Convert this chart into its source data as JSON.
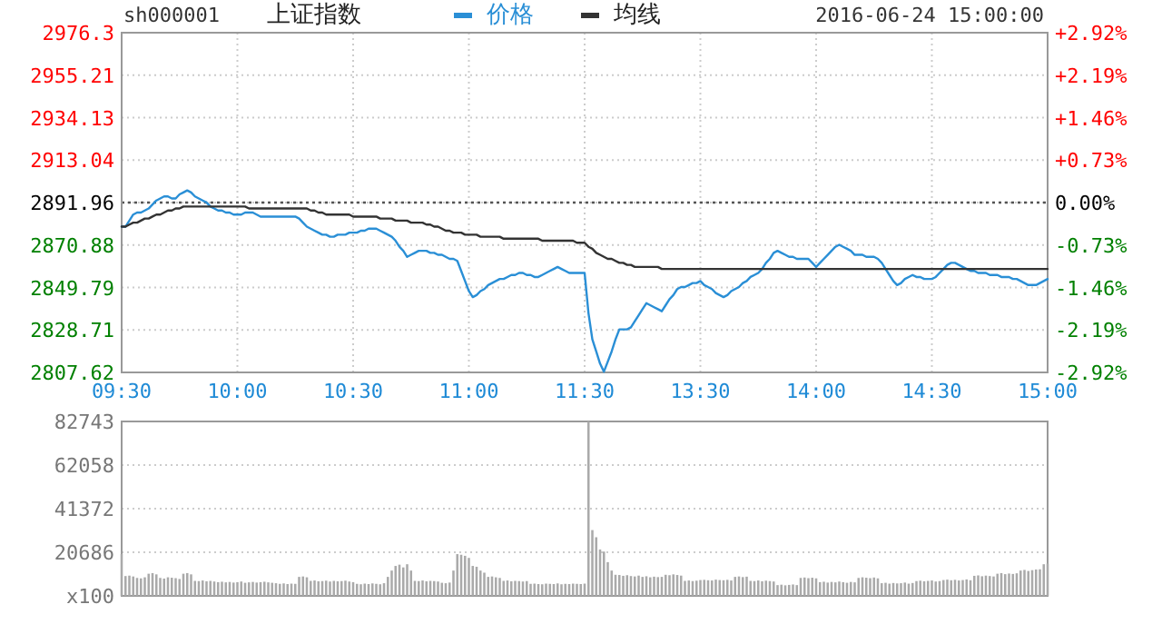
{
  "chart_data": [
    {
      "type": "line",
      "title": "上证指数",
      "subtitle": "sh000001",
      "annotations": [
        "2016-06-24 15:00:00"
      ],
      "legend": "top",
      "grid": true,
      "line_style": "solid",
      "categories": [
        "09:30",
        null,
        null,
        null,
        null,
        null,
        null,
        null,
        null,
        null,
        null,
        null,
        null,
        null,
        null,
        null,
        null,
        null,
        null,
        null,
        null,
        null,
        null,
        null,
        null,
        null,
        null,
        null,
        null,
        null,
        "10:00",
        null,
        null,
        null,
        null,
        null,
        null,
        null,
        null,
        null,
        null,
        null,
        null,
        null,
        null,
        null,
        null,
        null,
        null,
        null,
        null,
        null,
        null,
        null,
        null,
        null,
        null,
        null,
        null,
        null,
        "10:30",
        null,
        null,
        null,
        null,
        null,
        null,
        null,
        null,
        null,
        null,
        null,
        null,
        null,
        null,
        null,
        null,
        null,
        null,
        null,
        null,
        null,
        null,
        null,
        null,
        null,
        null,
        null,
        null,
        null,
        "11:00",
        null,
        null,
        null,
        null,
        null,
        null,
        null,
        null,
        null,
        null,
        null,
        null,
        null,
        null,
        null,
        null,
        null,
        null,
        null,
        null,
        null,
        null,
        null,
        null,
        null,
        null,
        null,
        null,
        null,
        "11:30",
        null,
        null,
        null,
        null,
        null,
        null,
        null,
        null,
        null,
        null,
        null,
        null,
        null,
        null,
        null,
        null,
        null,
        null,
        null,
        null,
        null,
        null,
        null,
        null,
        null,
        null,
        null,
        null,
        null,
        "13:30",
        null,
        null,
        null,
        null,
        null,
        null,
        null,
        null,
        null,
        null,
        null,
        null,
        null,
        null,
        null,
        null,
        null,
        null,
        null,
        null,
        null,
        null,
        null,
        null,
        null,
        null,
        null,
        null,
        null,
        "14:00",
        null,
        null,
        null,
        null,
        null,
        null,
        null,
        null,
        null,
        null,
        null,
        null,
        null,
        null,
        null,
        null,
        null,
        null,
        null,
        null,
        null,
        null,
        null,
        null,
        null,
        null,
        null,
        null,
        null,
        "14:30",
        null,
        null,
        null,
        null,
        null,
        null,
        null,
        null,
        null,
        null,
        null,
        null,
        null,
        null,
        null,
        null,
        null,
        null,
        null,
        null,
        null,
        null,
        null,
        null,
        null,
        null,
        null,
        null,
        null,
        "15:00"
      ],
      "ylim": [
        2807.62,
        2976.3
      ],
      "yticks": [
        2807.62,
        2828.71,
        2849.79,
        2870.88,
        2891.96,
        2913.04,
        2934.13,
        2955.21,
        2976.3
      ],
      "y2lim": [
        -2.92,
        2.92
      ],
      "y2ticks": [
        {
          "value": -2.92,
          "label": "-2.92%"
        },
        {
          "value": -2.19,
          "label": "-2.19%"
        },
        {
          "value": -1.46,
          "label": "-1.46%"
        },
        {
          "value": -0.73,
          "label": "-0.73%"
        },
        {
          "value": 0,
          "label": "0.00%"
        },
        {
          "value": 0.73,
          "label": "+0.73%"
        },
        {
          "value": 1.46,
          "label": "+1.46%"
        },
        {
          "value": 2.19,
          "label": "+2.19%"
        },
        {
          "value": 2.92,
          "label": "+2.92%"
        }
      ],
      "ref_lines": [
        {
          "axis": "y",
          "value": 2891.96,
          "color": "#555555",
          "line_style": "dotted"
        }
      ],
      "series": [
        {
          "name": "价格",
          "color": "#2a8fd6",
          "values": [
            2880,
            2880,
            2883,
            2886,
            2887,
            2887,
            2888,
            2889,
            2891,
            2893,
            2894,
            2895,
            2895,
            2894,
            2894,
            2896,
            2897,
            2898,
            2897,
            2895,
            2894,
            2893,
            2892,
            2890,
            2889,
            2888,
            2888,
            2887,
            2887,
            2886,
            2886,
            2886,
            2887,
            2887,
            2887,
            2886,
            2885,
            2885,
            2885,
            2885,
            2885,
            2885,
            2885,
            2885,
            2885,
            2885,
            2884,
            2882,
            2880,
            2879,
            2878,
            2877,
            2876,
            2876,
            2875,
            2875,
            2876,
            2876,
            2876,
            2877,
            2877,
            2877,
            2878,
            2878,
            2879,
            2879,
            2879,
            2878,
            2877,
            2876,
            2875,
            2873,
            2870,
            2868,
            2865,
            2866,
            2867,
            2868,
            2868,
            2868,
            2867,
            2867,
            2866,
            2866,
            2865,
            2864,
            2864,
            2863,
            2858,
            2853,
            2848,
            2845,
            2846,
            2848,
            2849,
            2851,
            2852,
            2853,
            2854,
            2854,
            2855,
            2856,
            2856,
            2857,
            2857,
            2856,
            2856,
            2855,
            2855,
            2856,
            2857,
            2858,
            2859,
            2860,
            2859,
            2858,
            2857,
            2857,
            2857,
            2857,
            2857,
            2837,
            2824,
            2818,
            2812,
            2808,
            2813,
            2818,
            2824,
            2829,
            2829,
            2829,
            2830,
            2833,
            2836,
            2839,
            2842,
            2841,
            2840,
            2839,
            2838,
            2841,
            2844,
            2846,
            2849,
            2850,
            2850,
            2851,
            2852,
            2852,
            2853,
            2851,
            2850,
            2849,
            2847,
            2846,
            2845,
            2846,
            2848,
            2849,
            2850,
            2852,
            2853,
            2855,
            2856,
            2857,
            2859,
            2862,
            2864,
            2867,
            2868,
            2867,
            2866,
            2865,
            2865,
            2864,
            2864,
            2864,
            2864,
            2862,
            2860,
            2862,
            2864,
            2866,
            2868,
            2870,
            2871,
            2870,
            2869,
            2868,
            2866,
            2866,
            2866,
            2865,
            2865,
            2865,
            2864,
            2862,
            2859,
            2856,
            2853,
            2851,
            2852,
            2854,
            2855,
            2856,
            2855,
            2855,
            2854,
            2854,
            2854,
            2855,
            2857,
            2859,
            2861,
            2862,
            2862,
            2861,
            2860,
            2859,
            2858,
            2858,
            2857,
            2857,
            2857,
            2856,
            2856,
            2856,
            2855,
            2855,
            2855,
            2854,
            2854,
            2853,
            2852,
            2851,
            2851,
            2851,
            2852,
            2853,
            2854
          ]
        },
        {
          "name": "均线",
          "color": "#333333",
          "values": [
            2880,
            2880,
            2881,
            2882,
            2882,
            2883,
            2884,
            2884,
            2885,
            2886,
            2886,
            2887,
            2888,
            2888,
            2889,
            2889,
            2890,
            2890,
            2890,
            2890,
            2890,
            2890,
            2890,
            2890,
            2890,
            2890,
            2890,
            2890,
            2890,
            2890,
            2890,
            2890,
            2890,
            2889,
            2889,
            2889,
            2889,
            2889,
            2889,
            2889,
            2889,
            2889,
            2889,
            2889,
            2889,
            2889,
            2889,
            2889,
            2889,
            2888,
            2888,
            2887,
            2887,
            2886,
            2886,
            2886,
            2886,
            2886,
            2886,
            2886,
            2885,
            2885,
            2885,
            2885,
            2885,
            2885,
            2885,
            2884,
            2884,
            2884,
            2884,
            2883,
            2883,
            2883,
            2883,
            2882,
            2882,
            2882,
            2882,
            2881,
            2881,
            2880,
            2880,
            2879,
            2878,
            2878,
            2877,
            2877,
            2877,
            2876,
            2876,
            2876,
            2876,
            2875,
            2875,
            2875,
            2875,
            2875,
            2875,
            2874,
            2874,
            2874,
            2874,
            2874,
            2874,
            2874,
            2874,
            2874,
            2874,
            2873,
            2873,
            2873,
            2873,
            2873,
            2873,
            2873,
            2873,
            2873,
            2872,
            2872,
            2872,
            2870,
            2869,
            2867,
            2866,
            2865,
            2864,
            2864,
            2863,
            2862,
            2862,
            2861,
            2861,
            2860,
            2860,
            2860,
            2860,
            2860,
            2860,
            2860,
            2859,
            2859,
            2859,
            2859,
            2859,
            2859,
            2859,
            2859,
            2859,
            2859,
            2859,
            2859,
            2859,
            2859,
            2859,
            2859,
            2859,
            2859,
            2859,
            2859,
            2859,
            2859,
            2859,
            2859,
            2859,
            2859,
            2859,
            2859,
            2859,
            2859,
            2859,
            2859,
            2859,
            2859,
            2859,
            2859,
            2859,
            2859,
            2859,
            2859,
            2859,
            2859,
            2859,
            2859,
            2859,
            2859,
            2859,
            2859,
            2859,
            2859,
            2859,
            2859,
            2859,
            2859,
            2859,
            2859,
            2859,
            2859,
            2859,
            2859,
            2859,
            2859,
            2859,
            2859,
            2859,
            2859,
            2859,
            2859,
            2859,
            2859,
            2859,
            2859,
            2859,
            2859,
            2859,
            2859,
            2859,
            2859,
            2859,
            2859,
            2859,
            2859,
            2859,
            2859,
            2859,
            2859,
            2859,
            2859,
            2859,
            2859,
            2859,
            2859,
            2859,
            2859,
            2859,
            2859,
            2859,
            2859,
            2859,
            2859,
            2859
          ]
        }
      ]
    },
    {
      "type": "bar",
      "tick_labels": "y",
      "grid": "y",
      "color": "#aaaaaa",
      "categories": [
        null,
        null,
        null,
        null,
        null,
        null,
        null,
        null,
        null,
        null,
        null,
        null,
        null,
        null,
        null,
        null,
        null,
        null,
        null,
        null,
        null,
        null,
        null,
        null,
        null,
        null,
        null,
        null,
        null,
        null,
        null,
        null,
        null,
        null,
        null,
        null,
        null,
        null,
        null,
        null,
        null,
        null,
        null,
        null,
        null,
        null,
        null,
        null,
        null,
        null,
        null,
        null,
        null,
        null,
        null,
        null,
        null,
        null,
        null,
        null,
        null,
        null,
        null,
        null,
        null,
        null,
        null,
        null,
        null,
        null,
        null,
        null,
        null,
        null,
        null,
        null,
        null,
        null,
        null,
        null,
        null,
        null,
        null,
        null,
        null,
        null,
        null,
        null,
        null,
        null,
        null,
        null,
        null,
        null,
        null,
        null,
        null,
        null,
        null,
        null,
        null,
        null,
        null,
        null,
        null,
        null,
        null,
        null,
        null,
        null,
        null,
        null,
        null,
        null,
        null,
        null,
        null,
        null,
        null,
        null,
        null,
        null,
        null,
        null,
        null,
        null,
        null,
        null,
        null,
        null,
        null,
        null,
        null,
        null,
        null,
        null,
        null,
        null,
        null,
        null,
        null,
        null,
        null,
        null,
        null,
        null,
        null,
        null,
        null,
        null,
        null,
        null,
        null,
        null,
        null,
        null,
        null,
        null,
        null,
        null,
        null,
        null,
        null,
        null,
        null,
        null,
        null,
        null,
        null,
        null,
        null,
        null,
        null,
        null,
        null,
        null,
        null,
        null,
        null,
        null,
        null,
        null,
        null,
        null,
        null,
        null,
        null,
        null,
        null,
        null,
        null,
        null,
        null,
        null,
        null,
        null,
        null,
        null,
        null,
        null,
        null,
        null,
        null,
        null,
        null,
        null,
        null,
        null,
        null,
        null,
        null,
        null,
        null,
        null,
        null,
        null,
        null,
        null,
        null,
        null,
        null,
        null,
        null,
        null,
        null,
        null,
        null,
        null,
        null,
        null,
        null,
        null,
        null,
        null,
        null,
        null,
        null,
        null,
        null,
        null,
        null
      ],
      "ylim": [
        0,
        82743
      ],
      "yticks": [
        {
          "value": 0,
          "label": "x100"
        },
        20686,
        41372,
        62058,
        82743
      ],
      "values": [
        19800,
        9400,
        9600,
        9200,
        8500,
        8300,
        8800,
        10500,
        10800,
        10200,
        8500,
        8200,
        8800,
        8600,
        8400,
        8000,
        10500,
        10800,
        10200,
        7100,
        7000,
        7300,
        6900,
        7100,
        6800,
        6500,
        6700,
        6400,
        6600,
        6300,
        6500,
        6800,
        6200,
        6400,
        6600,
        6300,
        6500,
        6700,
        6400,
        6200,
        6000,
        5700,
        5900,
        5600,
        5800,
        5700,
        9000,
        9200,
        8800,
        7100,
        7300,
        6900,
        7000,
        7200,
        6800,
        7100,
        6900,
        7000,
        7200,
        6800,
        6500,
        5700,
        5500,
        5800,
        5600,
        5900,
        5700,
        5500,
        6000,
        9000,
        12000,
        14200,
        14800,
        13500,
        15000,
        12000,
        7100,
        7000,
        7300,
        6900,
        7100,
        7000,
        6800,
        6200,
        6000,
        6300,
        12000,
        19800,
        19500,
        19000,
        18000,
        14200,
        13800,
        12000,
        11000,
        9000,
        9200,
        8800,
        8500,
        7100,
        7300,
        6900,
        7100,
        7000,
        6800,
        7000,
        5700,
        5800,
        5600,
        5500,
        5800,
        5700,
        5600,
        5900,
        5500,
        5700,
        5600,
        5800,
        5700,
        5600,
        5800,
        82743,
        31200,
        27800,
        22000,
        21000,
        16000,
        12000,
        10000,
        9900,
        9500,
        9800,
        9400,
        9200,
        9600,
        9000,
        9300,
        8800,
        9100,
        8900,
        9000,
        10000,
        9800,
        10200,
        9900,
        9600,
        7100,
        7300,
        7000,
        7200,
        7500,
        7600,
        7400,
        7300,
        7700,
        7500,
        7400,
        7600,
        7300,
        9000,
        9200,
        8900,
        9100,
        7100,
        7000,
        7300,
        6900,
        7200,
        7000,
        6800,
        5100,
        5300,
        5000,
        5200,
        5400,
        5100,
        8500,
        8700,
        8400,
        8600,
        8300,
        6500,
        6700,
        6300,
        6600,
        6400,
        6800,
        6500,
        6200,
        6600,
        6400,
        8500,
        8800,
        8600,
        8400,
        8700,
        8300,
        6000,
        6200,
        5800,
        6100,
        5900,
        6000,
        6300,
        5800,
        6100,
        7000,
        7200,
        6900,
        7100,
        7300,
        6800,
        7000,
        7500,
        7700,
        7400,
        7600,
        7300,
        7500,
        7800,
        7400,
        9500,
        9700,
        9300,
        9600,
        9400,
        9200,
        10500,
        10800,
        10300,
        10600,
        10400,
        10700,
        12000,
        12300,
        11800,
        12200,
        12500,
        12600,
        15000,
        15300
      ]
    }
  ]
}
